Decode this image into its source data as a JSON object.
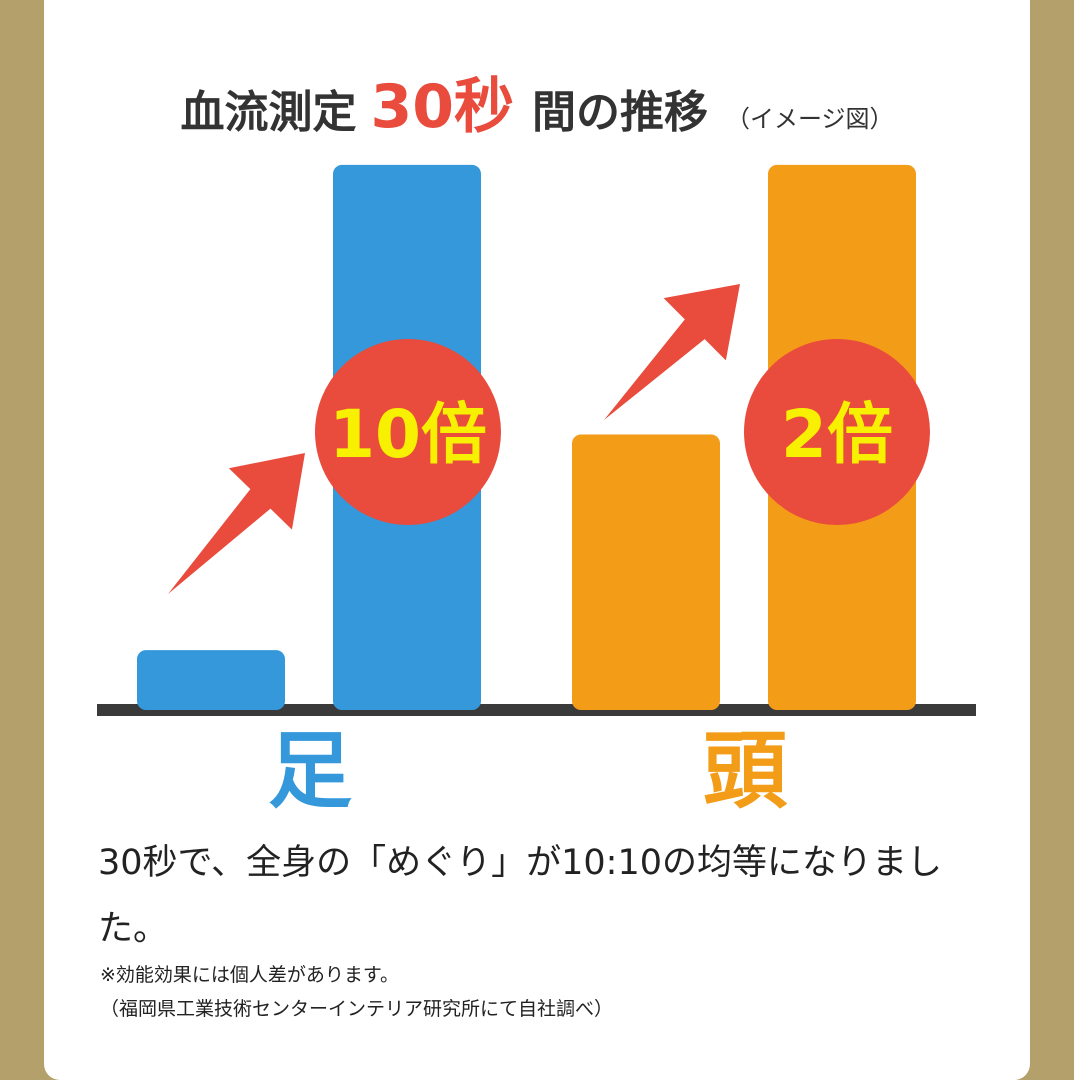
{
  "title": {
    "part1": "血流測定",
    "part2": "30秒",
    "part3": "間の推移",
    "part4": "（イメージ図）"
  },
  "chart_data": {
    "type": "bar",
    "title": "血流測定30秒間の推移（イメージ図）",
    "groups": [
      {
        "label": "足",
        "color": "#3498db",
        "values": [
          1,
          10
        ],
        "multiplier_label": "10倍"
      },
      {
        "label": "頭",
        "color": "#f39c18",
        "values": [
          5,
          10
        ],
        "multiplier_label": "2倍"
      }
    ],
    "ylim": [
      0,
      11
    ],
    "grid": false,
    "colors": {
      "axis": "#3a3a3a",
      "arrow": "#e94b3c",
      "badge": "#e94b3c",
      "badge_text": "#f7f000"
    }
  },
  "caption": "30秒で、全身の「めぐり」が10:10の均等になりました。",
  "notes": [
    "※効能効果には個人差があります。",
    "（福岡県工業技術センターインテリア研究所にて自社調べ）"
  ]
}
